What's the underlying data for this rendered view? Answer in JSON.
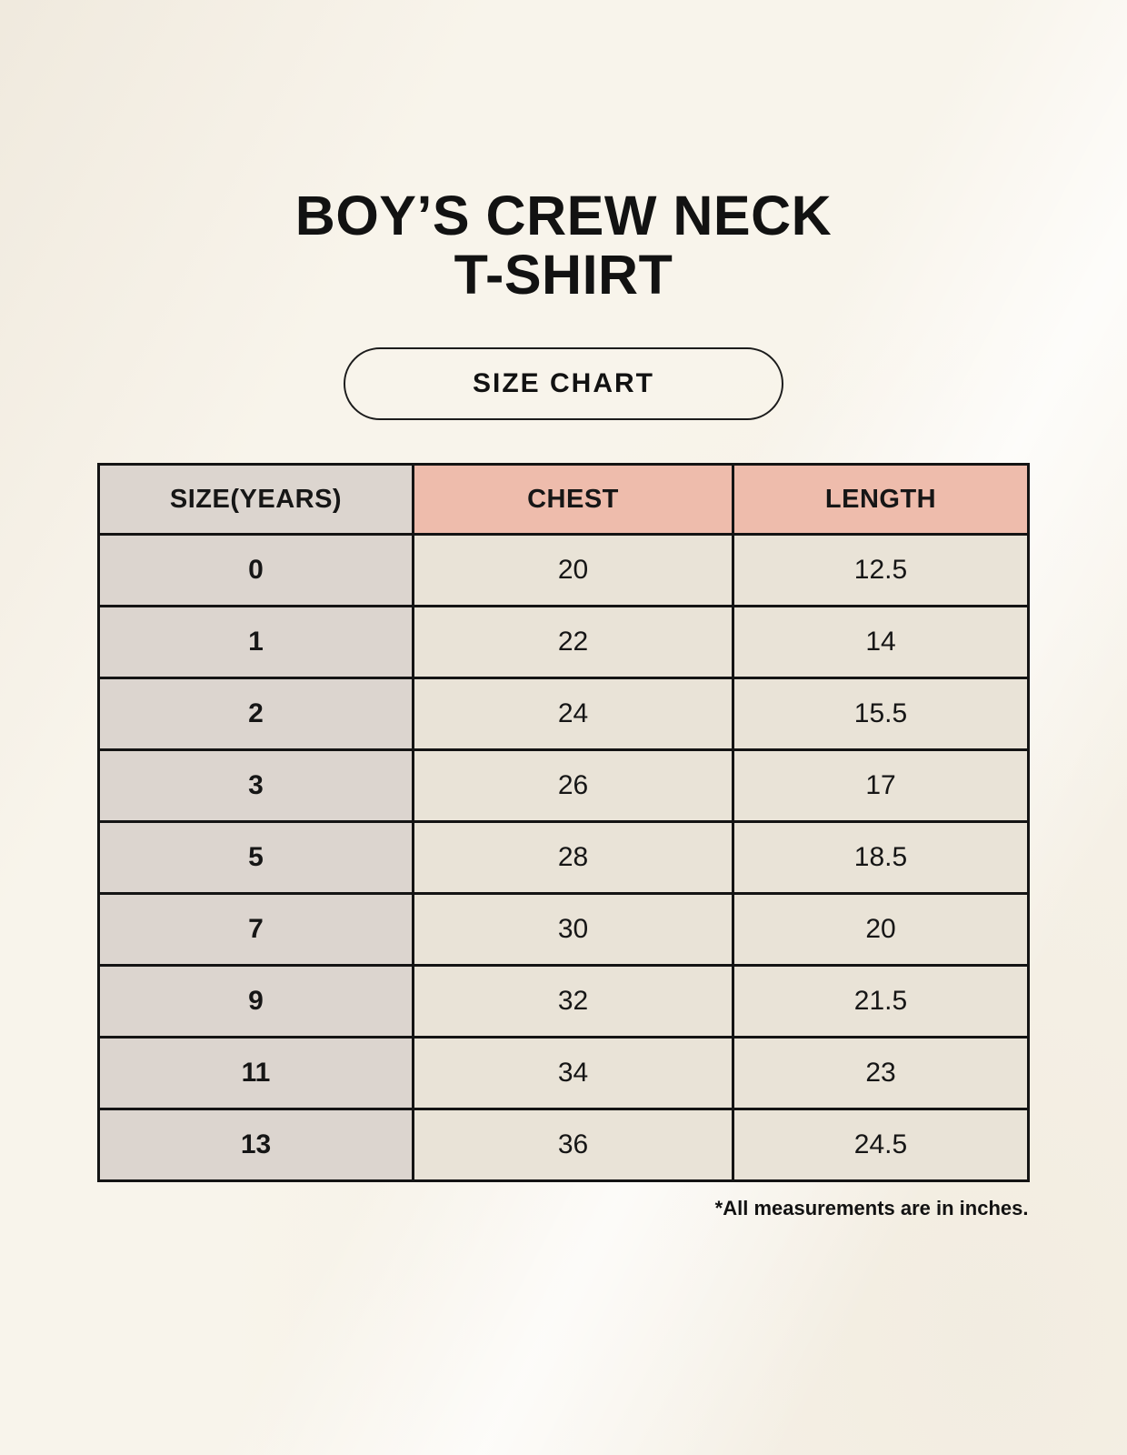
{
  "header": {
    "title_line1": "BOY’S CREW NECK",
    "title_line2": "T-SHIRT",
    "badge_label": "SIZE CHART"
  },
  "footnote": "*All measurements are in inches.",
  "colors": {
    "background": "#f8f4eb",
    "size_column_bg": "#dcd5cf",
    "measure_header_bg": "#eebcac",
    "data_cell_bg": "#e9e3d7",
    "border": "#141414",
    "text": "#121212"
  },
  "chart_data": {
    "type": "table",
    "title": "BOY’S CREW NECK T-SHIRT",
    "subtitle": "SIZE CHART",
    "columns": [
      "SIZE(YEARS)",
      "CHEST",
      "LENGTH"
    ],
    "rows": [
      [
        "0",
        "20",
        "12.5"
      ],
      [
        "1",
        "22",
        "14"
      ],
      [
        "2",
        "24",
        "15.5"
      ],
      [
        "3",
        "26",
        "17"
      ],
      [
        "5",
        "28",
        "18.5"
      ],
      [
        "7",
        "30",
        "20"
      ],
      [
        "9",
        "32",
        "21.5"
      ],
      [
        "11",
        "34",
        "23"
      ],
      [
        "13",
        "36",
        "24.5"
      ]
    ],
    "footnote": "*All measurements are in inches.",
    "units": "inches",
    "layout_hints": {
      "header_fill_size_col": "#dcd5cf",
      "header_fill_measure_cols": "#eebcac",
      "body_fill_size_col": "#dcd5cf",
      "body_fill_data_cols": "#e9e3d7"
    }
  }
}
